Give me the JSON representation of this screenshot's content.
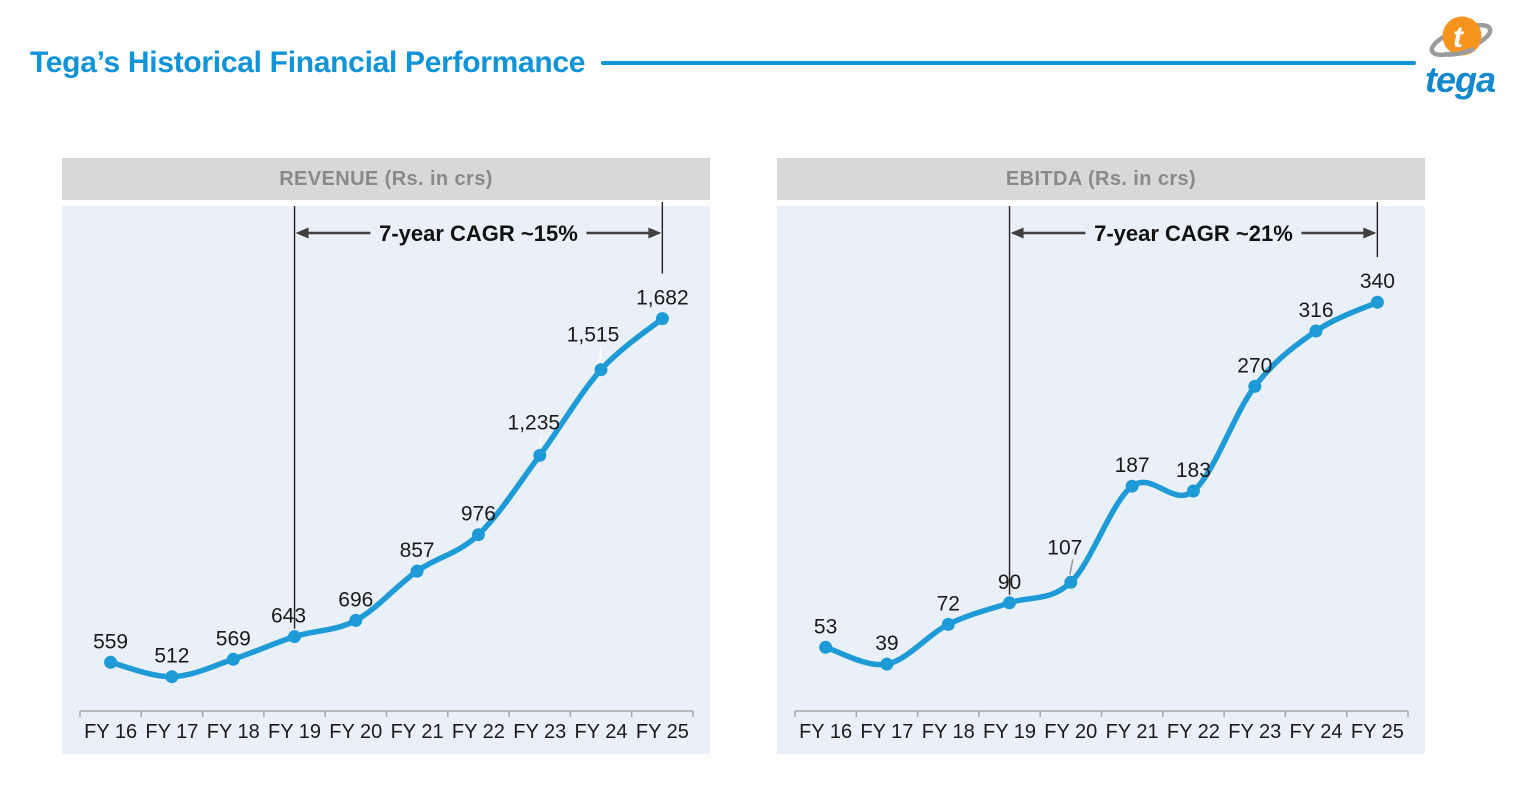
{
  "page": {
    "title": "Tega’s Historical Financial Performance",
    "accent_color": "#1193D8"
  },
  "logo": {
    "text": "tega",
    "letter": "t",
    "sphere_color": "#F7941E",
    "ring_color": "#9B9B9B",
    "text_color": "#1488CC"
  },
  "chart_data": [
    {
      "type": "line",
      "title": "REVENUE (Rs. in crs)",
      "categories": [
        "FY 16",
        "FY 17",
        "FY 18",
        "FY 19",
        "FY 20",
        "FY 21",
        "FY 22",
        "FY 23",
        "FY 24",
        "FY 25"
      ],
      "values": [
        559,
        512,
        569,
        643,
        696,
        857,
        976,
        1235,
        1515,
        1682
      ],
      "labels": [
        "559",
        "512",
        "569",
        "643",
        "696",
        "857",
        "976",
        "1,235",
        "1,515",
        "1,682"
      ],
      "annotation": "7-year CAGR ~15%",
      "annotation_span": [
        "FY 19",
        "FY 25"
      ],
      "ylim": [
        400,
        2050
      ],
      "line_color": "#1E9BD7",
      "background_color": "#EAF0F8",
      "grid": "off",
      "label_dx": [
        0,
        0,
        0,
        -6,
        0,
        0,
        0,
        -6,
        -8,
        0
      ],
      "label_dy": [
        0,
        0,
        0,
        0,
        0,
        0,
        0,
        -12,
        -14,
        0
      ],
      "leader_lines": [
        {
          "index": 7,
          "color": "#ffffff"
        },
        {
          "index": 8,
          "color": "#ffffff"
        }
      ]
    },
    {
      "type": "line",
      "title": "EBITDA (Rs. in crs)",
      "categories": [
        "FY 16",
        "FY 17",
        "FY 18",
        "FY 19",
        "FY 20",
        "FY 21",
        "FY 22",
        "FY 23",
        "FY 24",
        "FY 25"
      ],
      "values": [
        53,
        39,
        72,
        90,
        107,
        187,
        183,
        270,
        316,
        340
      ],
      "labels": [
        "53",
        "39",
        "72",
        "90",
        "107",
        "187",
        "183",
        "270",
        "316",
        "340"
      ],
      "annotation": "7-year CAGR ~21%",
      "annotation_span": [
        "FY 19",
        "FY 25"
      ],
      "ylim": [
        0,
        420
      ],
      "line_color": "#1E9BD7",
      "background_color": "#EAF0F8",
      "grid": "off",
      "label_dx": [
        0,
        0,
        0,
        0,
        -6,
        0,
        0,
        0,
        0,
        0
      ],
      "label_dy": [
        0,
        0,
        0,
        0,
        -14,
        0,
        0,
        0,
        0,
        0
      ],
      "leader_lines": [
        {
          "index": 4,
          "color": "#9B9B9B"
        }
      ]
    }
  ]
}
